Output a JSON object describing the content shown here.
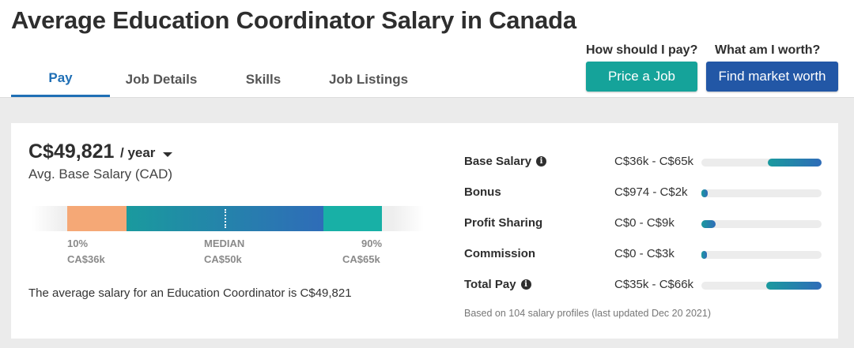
{
  "header": {
    "title": "Average Education Coordinator Salary in Canada"
  },
  "tabs": [
    {
      "label": "Pay",
      "active": true
    },
    {
      "label": "Job Details",
      "active": false
    },
    {
      "label": "Skills",
      "active": false
    },
    {
      "label": "Job Listings",
      "active": false
    }
  ],
  "cta": {
    "pay_question": "How should I pay?",
    "price_button": "Price a Job",
    "worth_question": "What am I worth?",
    "market_button": "Find market worth"
  },
  "summary": {
    "amount": "C$49,821",
    "period": "/ year",
    "subtitle": "Avg. Base Salary (CAD)",
    "percentile_10_label": "10%",
    "percentile_10_value": "CA$36k",
    "median_label": "MEDIAN",
    "median_value": "CA$50k",
    "percentile_90_label": "90%",
    "percentile_90_value": "CA$65k",
    "average_statement": "The average salary for an Education Coordinator is C$49,821"
  },
  "breakdown": [
    {
      "label": "Base Salary",
      "info": true,
      "range": "C$36k - C$65k",
      "fill_start": 0.55,
      "fill_end": 1.0
    },
    {
      "label": "Bonus",
      "info": false,
      "range": "C$974 - C$2k",
      "fill_start": 0.0,
      "fill_end": 0.05
    },
    {
      "label": "Profit Sharing",
      "info": false,
      "range": "C$0 - C$9k",
      "fill_start": 0.0,
      "fill_end": 0.12
    },
    {
      "label": "Commission",
      "info": false,
      "range": "C$0 - C$3k",
      "fill_start": 0.0,
      "fill_end": 0.045
    },
    {
      "label": "Total Pay",
      "info": true,
      "range": "C$35k - C$66k",
      "fill_start": 0.54,
      "fill_end": 1.0
    }
  ],
  "footnote": "Based on 104 salary profiles (last updated Dec 20 2021)",
  "colors": {
    "accent_blue": "#1f6fb5",
    "price_button": "#15a39a",
    "market_button": "#2257a6",
    "low_segment": "#f5a876",
    "high_segment": "#18b0a6"
  }
}
